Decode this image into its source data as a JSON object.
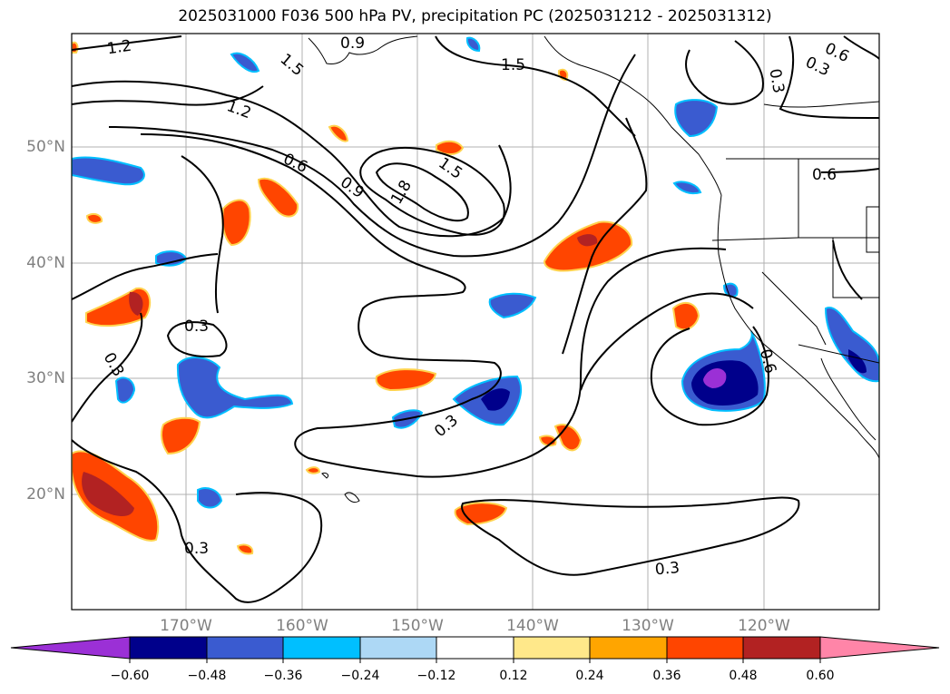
{
  "title": "2025031000 F036 500 hPa PV, precipitation PC (2025031212 - 2025031312)",
  "axes": {
    "lat_labels": [
      "50°N",
      "40°N",
      "30°N",
      "20°N"
    ],
    "lon_labels": [
      "170°W",
      "160°W",
      "150°W",
      "140°W",
      "130°W",
      "120°W"
    ]
  },
  "contour_labels": [
    "1.2",
    "0.9",
    "1.5",
    "1.5",
    "0.6",
    "0.3",
    "0.3",
    "1.2",
    "0.6",
    "0.9",
    "1.8",
    "1.5",
    "0.6",
    "0.3",
    "0.3",
    "0.3",
    "0.6",
    "0.3",
    "0.3"
  ],
  "colorbar": {
    "ticks": [
      "−0.60",
      "−0.48",
      "−0.36",
      "−0.24",
      "−0.12",
      "0.12",
      "0.24",
      "0.36",
      "0.48",
      "0.60"
    ],
    "colors": [
      "#9b30d6",
      "#00008b",
      "#3a5bd0",
      "#00bfff",
      "#add8f5",
      "#ffffff",
      "#ffe88a",
      "#ffa500",
      "#ff4500",
      "#b22222",
      "#ff85a8"
    ]
  },
  "colors": {
    "positive_strong": "#ff4500",
    "negative_strong": "#00008b",
    "contour": "#000000",
    "grid": "#b0b0b0"
  }
}
